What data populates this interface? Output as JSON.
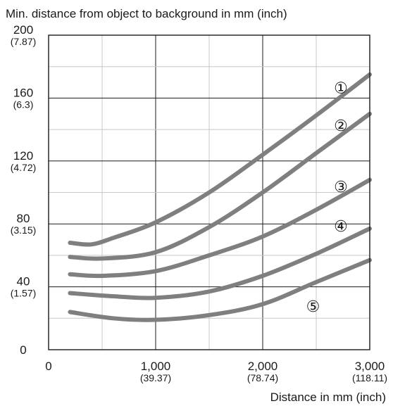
{
  "chart_data": {
    "type": "line",
    "title": "Min. distance from object to background in mm (inch)",
    "xlabel": "Distance in mm (inch)",
    "ylabel": "",
    "xlim": [
      0,
      3000
    ],
    "ylim": [
      0,
      200
    ],
    "grid": true,
    "x_ticks": [
      {
        "value": 0,
        "label": "0",
        "sub": ""
      },
      {
        "value": 1000,
        "label": "1,000",
        "sub": "(39.37)"
      },
      {
        "value": 2000,
        "label": "2,000",
        "sub": "(78.74)"
      },
      {
        "value": 3000,
        "label": "3,000",
        "sub": "(118.11)"
      }
    ],
    "y_ticks": [
      {
        "value": 0,
        "label": "0",
        "sub": ""
      },
      {
        "value": 40,
        "label": "40",
        "sub": "(1.57)"
      },
      {
        "value": 80,
        "label": "80",
        "sub": "(3.15)"
      },
      {
        "value": 120,
        "label": "120",
        "sub": "(4.72)"
      },
      {
        "value": 160,
        "label": "160",
        "sub": "(6.3)"
      },
      {
        "value": 200,
        "label": "200",
        "sub": "(7.87)"
      }
    ],
    "series": [
      {
        "name": "①",
        "label_at": [
          2730,
          167
        ],
        "points": [
          [
            200,
            68
          ],
          [
            400,
            67
          ],
          [
            600,
            71
          ],
          [
            1000,
            81
          ],
          [
            1500,
            100
          ],
          [
            2000,
            124
          ],
          [
            2500,
            149
          ],
          [
            3000,
            175
          ]
        ]
      },
      {
        "name": "②",
        "label_at": [
          2730,
          143
        ],
        "points": [
          [
            200,
            59
          ],
          [
            500,
            58
          ],
          [
            1000,
            62
          ],
          [
            1500,
            78
          ],
          [
            2000,
            100
          ],
          [
            2500,
            125
          ],
          [
            3000,
            150
          ]
        ]
      },
      {
        "name": "③",
        "label_at": [
          2730,
          104
        ],
        "points": [
          [
            200,
            48
          ],
          [
            500,
            47
          ],
          [
            1000,
            50
          ],
          [
            1500,
            60
          ],
          [
            2000,
            72
          ],
          [
            2500,
            89
          ],
          [
            3000,
            108
          ]
        ]
      },
      {
        "name": "④",
        "label_at": [
          2730,
          79
        ],
        "points": [
          [
            200,
            36
          ],
          [
            600,
            34
          ],
          [
            1000,
            33
          ],
          [
            1500,
            37
          ],
          [
            2000,
            47
          ],
          [
            2500,
            61
          ],
          [
            3000,
            77
          ]
        ]
      },
      {
        "name": "⑤",
        "label_at": [
          2470,
          28
        ],
        "points": [
          [
            200,
            24
          ],
          [
            600,
            20
          ],
          [
            1000,
            19
          ],
          [
            1500,
            22
          ],
          [
            2000,
            29
          ],
          [
            2500,
            43
          ],
          [
            3000,
            57
          ]
        ]
      }
    ]
  }
}
